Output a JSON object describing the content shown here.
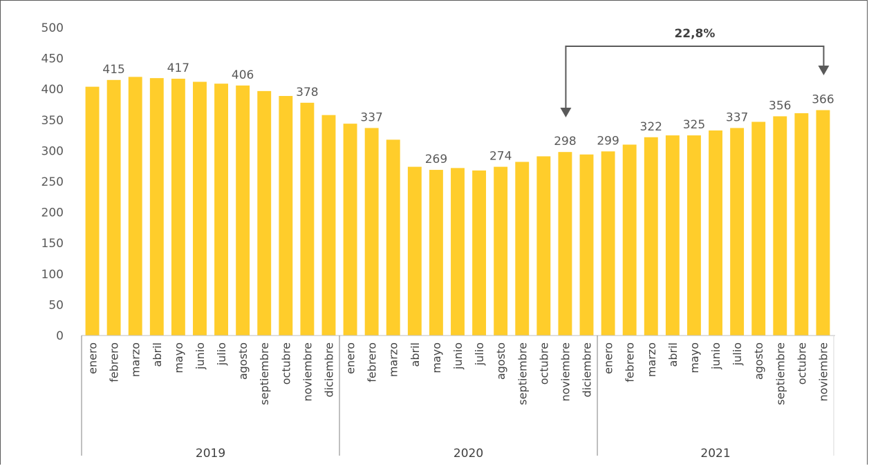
{
  "chart_data": {
    "type": "bar",
    "ylim": [
      0,
      500
    ],
    "yticks": [
      "0",
      "50",
      "100",
      "150",
      "200",
      "250",
      "300",
      "350",
      "400",
      "450",
      "500"
    ],
    "categories": [
      "enero",
      "febrero",
      "marzo",
      "abril",
      "mayo",
      "junio",
      "julio",
      "agosto",
      "septiembre",
      "octubre",
      "noviembre",
      "diciembre",
      "enero",
      "febrero",
      "marzo",
      "abril",
      "mayo",
      "junio",
      "julio",
      "agosto",
      "septiembre",
      "octubre",
      "noviembre",
      "diciembre",
      "enero",
      "febrero",
      "marzo",
      "abril",
      "mayo",
      "junio",
      "julio",
      "agosto",
      "septiembre",
      "octubre",
      "noviembre"
    ],
    "values": [
      404,
      415,
      420,
      418,
      417,
      412,
      409,
      406,
      397,
      389,
      378,
      358,
      344,
      337,
      318,
      274,
      269,
      272,
      268,
      274,
      282,
      291,
      298,
      294,
      299,
      310,
      322,
      325,
      325,
      333,
      337,
      347,
      356,
      361,
      366
    ],
    "data_labels": [
      "",
      "415",
      "",
      "",
      "417",
      "",
      "",
      "406",
      "",
      "",
      "378",
      "",
      "",
      "337",
      "",
      "",
      "269",
      "",
      "",
      "274",
      "",
      "",
      "298",
      "",
      "299",
      "",
      "322",
      "",
      "325",
      "",
      "337",
      "",
      "356",
      "",
      "366"
    ],
    "years": [
      {
        "label": "2019",
        "count": 12
      },
      {
        "label": "2020",
        "count": 12
      },
      {
        "label": "2021",
        "count": 11
      }
    ],
    "annotation": {
      "text": "22,8%",
      "from_index": 22,
      "to_index": 34
    },
    "colors": {
      "bar": "#FFCD2B",
      "axis": "#595959",
      "arrow": "#595959"
    },
    "grid": false
  }
}
